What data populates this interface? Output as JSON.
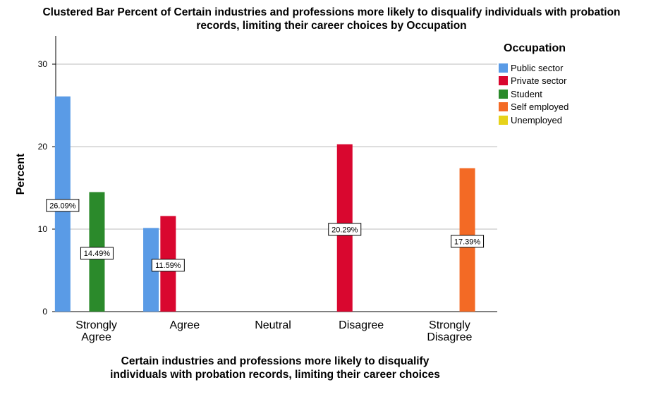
{
  "chart_data": {
    "type": "bar",
    "title": "Clustered Bar Percent of Certain industries and professions more likely to disqualify individuals with probation records, limiting their career choices by Occupation",
    "title_lines": [
      "Clustered Bar Percent of Certain industries and professions more likely to disqualify individuals with probation",
      "records, limiting their career choices by Occupation"
    ],
    "xlabel": "Certain industries and professions more likely to disqualify individuals with probation records, limiting their career choices",
    "xlabel_lines": [
      "Certain industries and professions more likely to disqualify",
      "individuals with probation records, limiting their career choices"
    ],
    "ylabel": "Percent",
    "ylim": [
      0,
      33
    ],
    "yticks": [
      0,
      10,
      20,
      30
    ],
    "grid": true,
    "legend_title": "Occupation",
    "legend_position": "right",
    "categories": [
      "Strongly Agree",
      "Agree",
      "Neutral",
      "Disagree",
      "Strongly Disagree"
    ],
    "category_lines": [
      [
        "Strongly",
        "Agree"
      ],
      [
        "Agree"
      ],
      [
        "Neutral"
      ],
      [
        "Disagree"
      ],
      [
        "Strongly",
        "Disagree"
      ]
    ],
    "series": [
      {
        "name": "Public sector",
        "color": "#5a9be6",
        "values": [
          26.09,
          10.14,
          0,
          0,
          0
        ],
        "labels": [
          "26.09%",
          "",
          "",
          "",
          ""
        ]
      },
      {
        "name": "Private sector",
        "color": "#d9072f",
        "values": [
          0,
          11.59,
          0,
          20.29,
          0
        ],
        "labels": [
          "",
          "11.59%",
          "",
          "20.29%",
          ""
        ]
      },
      {
        "name": "Student",
        "color": "#2b8a2b",
        "values": [
          14.49,
          0,
          0,
          0,
          0
        ],
        "labels": [
          "14.49%",
          "",
          "",
          "",
          ""
        ]
      },
      {
        "name": "Self employed",
        "color": "#f36a25",
        "values": [
          0,
          0,
          0,
          0,
          17.39
        ],
        "labels": [
          "",
          "",
          "",
          "",
          "17.39%"
        ]
      },
      {
        "name": "Unemployed",
        "color": "#e6d21a",
        "values": [
          0,
          0,
          0,
          0,
          0
        ],
        "labels": [
          "",
          "",
          "",
          "",
          ""
        ]
      }
    ]
  }
}
